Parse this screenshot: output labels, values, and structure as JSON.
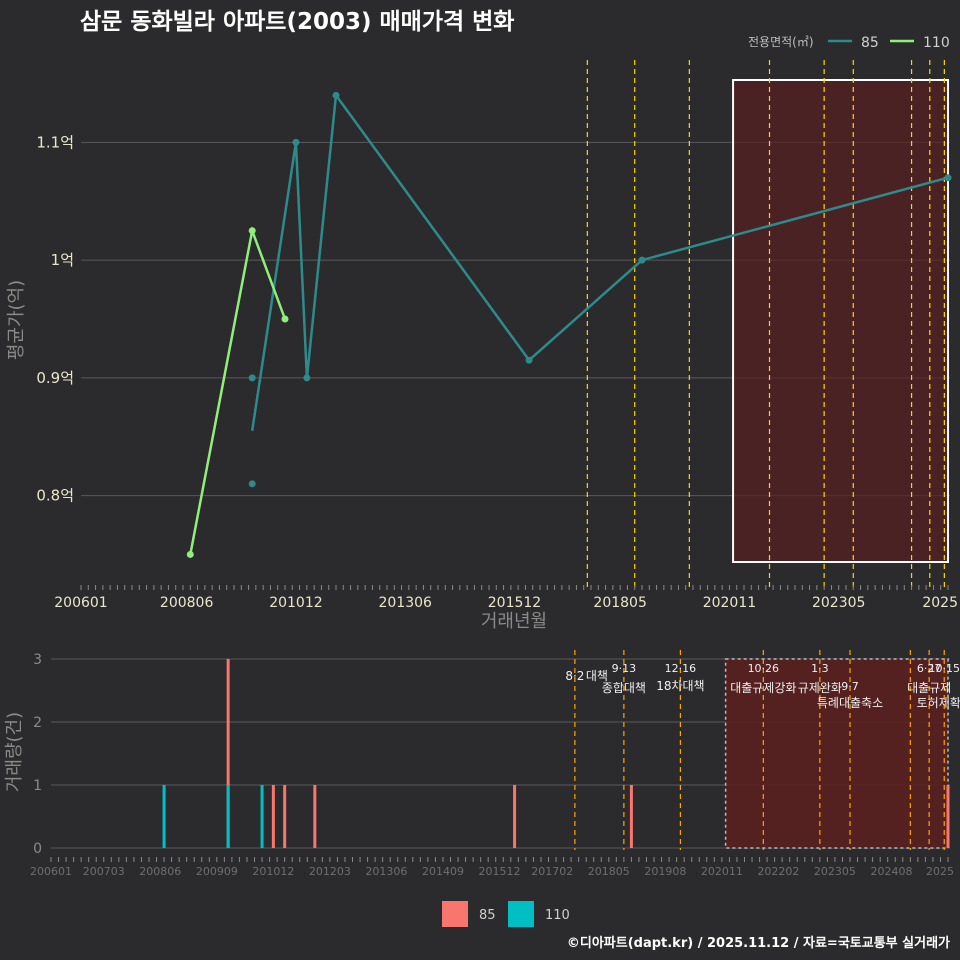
{
  "title": "삼문 동화빌라 아파트(2003) 매매가격 변화",
  "legend": {
    "title": "전용면적(㎡)",
    "items": [
      {
        "label": "85",
        "color": "#2e8b8b"
      },
      {
        "label": "110",
        "color": "#90ee7a"
      }
    ]
  },
  "colors": {
    "line85": "#2e8b8b",
    "line110": "#90ee7a",
    "bar85": "#f8766d",
    "bar110": "#00bfc4",
    "policy": "#ffd700",
    "policy2": "#ffa500",
    "shade": "#5a1f1f"
  },
  "chart_data": [
    {
      "type": "line",
      "title": "삼문 동화빌라 아파트(2003) 매매가격 변화",
      "xlabel": "거래년월",
      "ylabel": "평균가(억)",
      "x_ticks": [
        "200601",
        "200806",
        "201012",
        "201306",
        "201512",
        "201805",
        "202011",
        "202305",
        "2025"
      ],
      "y_ticks": [
        "0.8억",
        "0.9억",
        "1억",
        "1.1억"
      ],
      "ylim": [
        0.73,
        1.17
      ],
      "series": [
        {
          "name": "85",
          "x": [
            "2009-12",
            "2010-12",
            "2011-03",
            "2011-11",
            "2016-04",
            "2018-11",
            "2025-11"
          ],
          "y": [
            0.855,
            1.1,
            0.9,
            1.14,
            0.915,
            1.0,
            1.07
          ]
        },
        {
          "name": "110",
          "x": [
            "2008-07",
            "2009-12",
            "2010-09"
          ],
          "y": [
            0.75,
            1.025,
            0.95
          ]
        }
      ],
      "points_85_extra": [
        {
          "x": "2009-12",
          "y": 0.9
        },
        {
          "x": "2009-12",
          "y": 0.81
        }
      ],
      "policy_lines": [
        "2017-08",
        "2018-09",
        "2019-12",
        "2021-10",
        "2023-01",
        "2023-09",
        "2025-01",
        "2025-06",
        "2025-10"
      ],
      "shaded_range": {
        "from": "2020-12",
        "to": "2025-11"
      }
    },
    {
      "type": "bar",
      "xlabel": "거래년월",
      "ylabel": "거래량(건)",
      "x_ticks": [
        "200601",
        "200703",
        "200806",
        "200909",
        "201012",
        "201203",
        "201306",
        "201409",
        "201512",
        "201702",
        "201805",
        "201908",
        "202011",
        "202202",
        "202305",
        "202408",
        "2025"
      ],
      "y_ticks": [
        "0",
        "1",
        "2",
        "3"
      ],
      "ylim": [
        0,
        3
      ],
      "series": [
        {
          "name": "85",
          "x": [
            "2009-12",
            "2010-12",
            "2011-03",
            "2011-11",
            "2016-04",
            "2018-11",
            "2025-11"
          ],
          "values": [
            3,
            1,
            1,
            1,
            1,
            1,
            1
          ]
        },
        {
          "name": "110",
          "x": [
            "2008-07",
            "2009-12",
            "2010-09"
          ],
          "values": [
            1,
            1,
            1
          ]
        }
      ],
      "annotations": [
        {
          "x": "2017-08",
          "date": "8·2",
          "label": "대책"
        },
        {
          "x": "2018-09",
          "date": "9·13",
          "label": "종합대책"
        },
        {
          "x": "2019-12",
          "date": "12·16",
          "label": "18차대책"
        },
        {
          "x": "2021-10",
          "date": "10·26",
          "label": "대출규제강화"
        },
        {
          "x": "2023-01",
          "date": "1·3",
          "label": "규제완화"
        },
        {
          "x": "2023-09",
          "date": "9·7",
          "label": "특례대출축소"
        },
        {
          "x": "2025-06",
          "date": "6·27",
          "label": "대출규제"
        },
        {
          "x": "2025-10",
          "date": "10·15",
          "label": "토허제확대"
        }
      ]
    }
  ],
  "footer": "©디아파트(dapt.kr) / 2025.11.12 / 자료=국토교통부 실거래가"
}
